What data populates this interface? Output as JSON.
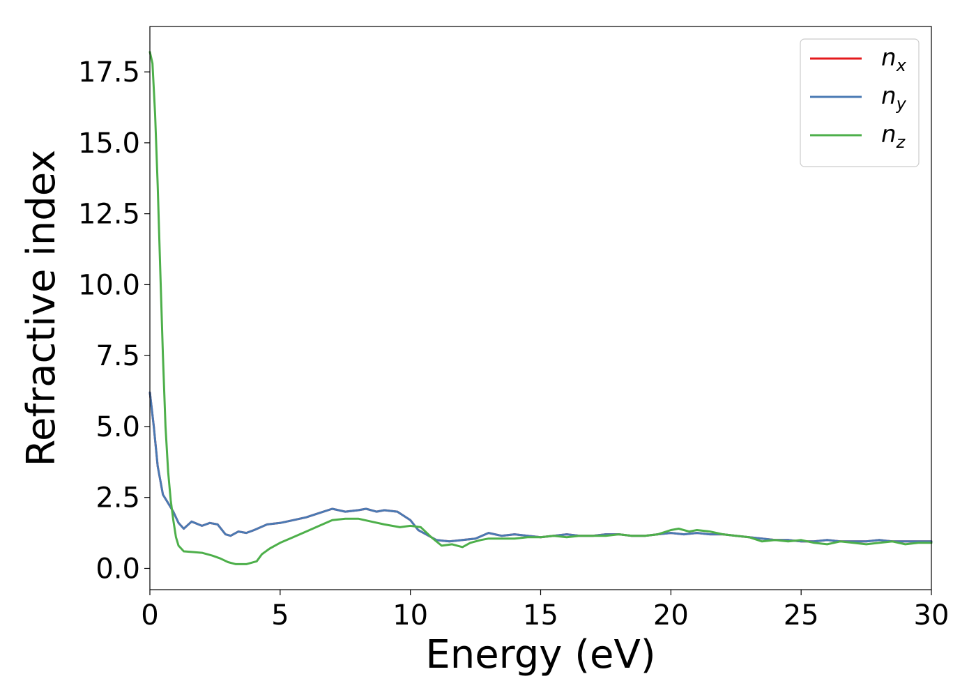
{
  "chart_data": {
    "type": "line",
    "title": "",
    "xlabel": "Energy (eV)",
    "ylabel": "Refractive index",
    "xlim": [
      0,
      30
    ],
    "ylim": [
      -0.75,
      19.1
    ],
    "xticks": [
      0,
      5,
      10,
      15,
      20,
      25,
      30
    ],
    "xtick_labels": [
      "0",
      "5",
      "10",
      "15",
      "20",
      "25",
      "30"
    ],
    "yticks": [
      0,
      2.5,
      5,
      7.5,
      10,
      12.5,
      15,
      17.5
    ],
    "ytick_labels": [
      "0.0",
      "2.5",
      "5.0",
      "7.5",
      "10.0",
      "12.5",
      "15.0",
      "17.5"
    ],
    "grid": false,
    "legend_position": "top-right",
    "series": [
      {
        "name": "n",
        "name_sub": "x",
        "color": "#e41a1c",
        "x": [
          0,
          0.15,
          0.3,
          0.5,
          0.7,
          0.9,
          1.1,
          1.3,
          1.6,
          2.0,
          2.3,
          2.6,
          2.9,
          3.1,
          3.4,
          3.7,
          4.0,
          4.5,
          5.0,
          5.5,
          6.0,
          6.5,
          7.0,
          7.5,
          8.0,
          8.3,
          8.7,
          9.0,
          9.5,
          10.0,
          10.3,
          10.6,
          11.0,
          11.5,
          12.0,
          12.5,
          13.0,
          13.5,
          14.0,
          14.5,
          15.0,
          15.5,
          16.0,
          16.5,
          17.0,
          17.5,
          18.0,
          18.5,
          19.0,
          19.5,
          20.0,
          20.5,
          21.0,
          21.5,
          22.0,
          22.5,
          23.0,
          23.5,
          24.0,
          24.5,
          25.0,
          25.5,
          26.0,
          26.5,
          27.0,
          27.5,
          28.0,
          28.5,
          29.0,
          29.5,
          30.0
        ],
        "y": [
          6.2,
          5.0,
          3.6,
          2.6,
          2.3,
          2.0,
          1.6,
          1.4,
          1.65,
          1.5,
          1.6,
          1.55,
          1.2,
          1.15,
          1.3,
          1.25,
          1.35,
          1.55,
          1.6,
          1.7,
          1.8,
          1.95,
          2.1,
          2.0,
          2.05,
          2.1,
          2.0,
          2.05,
          2.0,
          1.7,
          1.35,
          1.2,
          1.0,
          0.95,
          1.0,
          1.05,
          1.25,
          1.15,
          1.2,
          1.15,
          1.1,
          1.15,
          1.2,
          1.15,
          1.15,
          1.2,
          1.2,
          1.15,
          1.15,
          1.2,
          1.25,
          1.2,
          1.25,
          1.2,
          1.2,
          1.15,
          1.1,
          1.05,
          1.0,
          1.0,
          0.95,
          0.95,
          1.0,
          0.95,
          0.95,
          0.95,
          1.0,
          0.95,
          0.95,
          0.95,
          0.95
        ]
      },
      {
        "name": "n",
        "name_sub": "y",
        "color": "#4a7ab3",
        "x": [
          0,
          0.15,
          0.3,
          0.5,
          0.7,
          0.9,
          1.1,
          1.3,
          1.6,
          2.0,
          2.3,
          2.6,
          2.9,
          3.1,
          3.4,
          3.7,
          4.0,
          4.5,
          5.0,
          5.5,
          6.0,
          6.5,
          7.0,
          7.5,
          8.0,
          8.3,
          8.7,
          9.0,
          9.5,
          10.0,
          10.3,
          10.6,
          11.0,
          11.5,
          12.0,
          12.5,
          13.0,
          13.5,
          14.0,
          14.5,
          15.0,
          15.5,
          16.0,
          16.5,
          17.0,
          17.5,
          18.0,
          18.5,
          19.0,
          19.5,
          20.0,
          20.5,
          21.0,
          21.5,
          22.0,
          22.5,
          23.0,
          23.5,
          24.0,
          24.5,
          25.0,
          25.5,
          26.0,
          26.5,
          27.0,
          27.5,
          28.0,
          28.5,
          29.0,
          29.5,
          30.0
        ],
        "y": [
          6.2,
          5.0,
          3.6,
          2.6,
          2.3,
          2.0,
          1.6,
          1.4,
          1.65,
          1.5,
          1.6,
          1.55,
          1.2,
          1.15,
          1.3,
          1.25,
          1.35,
          1.55,
          1.6,
          1.7,
          1.8,
          1.95,
          2.1,
          2.0,
          2.05,
          2.1,
          2.0,
          2.05,
          2.0,
          1.7,
          1.35,
          1.2,
          1.0,
          0.95,
          1.0,
          1.05,
          1.25,
          1.15,
          1.2,
          1.15,
          1.1,
          1.15,
          1.2,
          1.15,
          1.15,
          1.2,
          1.2,
          1.15,
          1.15,
          1.2,
          1.25,
          1.2,
          1.25,
          1.2,
          1.2,
          1.15,
          1.1,
          1.05,
          1.0,
          1.0,
          0.95,
          0.95,
          1.0,
          0.95,
          0.95,
          0.95,
          1.0,
          0.95,
          0.95,
          0.95,
          0.95
        ]
      },
      {
        "name": "n",
        "name_sub": "z",
        "color": "#4daf4a",
        "x": [
          0,
          0.1,
          0.2,
          0.3,
          0.4,
          0.5,
          0.6,
          0.7,
          0.8,
          0.9,
          1.0,
          1.1,
          1.3,
          1.6,
          2.0,
          2.4,
          2.7,
          3.0,
          3.3,
          3.7,
          4.1,
          4.3,
          4.6,
          5.0,
          5.5,
          6.0,
          6.5,
          7.0,
          7.5,
          8.0,
          8.5,
          9.0,
          9.3,
          9.6,
          10.0,
          10.4,
          10.8,
          11.2,
          11.6,
          12.0,
          12.3,
          12.7,
          13.0,
          13.5,
          14.0,
          14.5,
          15.0,
          15.5,
          16.0,
          16.5,
          17.0,
          17.5,
          18.0,
          18.5,
          19.0,
          19.5,
          20.0,
          20.3,
          20.7,
          21.0,
          21.5,
          22.0,
          22.5,
          23.0,
          23.5,
          24.0,
          24.5,
          25.0,
          25.5,
          26.0,
          26.5,
          27.0,
          27.5,
          28.0,
          28.5,
          29.0,
          29.5,
          30.0
        ],
        "y": [
          18.2,
          17.8,
          16.0,
          13.5,
          10.5,
          7.5,
          5.0,
          3.4,
          2.4,
          1.7,
          1.1,
          0.8,
          0.6,
          0.58,
          0.55,
          0.45,
          0.35,
          0.22,
          0.15,
          0.15,
          0.25,
          0.5,
          0.7,
          0.9,
          1.1,
          1.3,
          1.5,
          1.7,
          1.75,
          1.75,
          1.65,
          1.55,
          1.5,
          1.45,
          1.5,
          1.45,
          1.1,
          0.8,
          0.85,
          0.75,
          0.9,
          1.0,
          1.05,
          1.05,
          1.05,
          1.1,
          1.1,
          1.15,
          1.1,
          1.15,
          1.15,
          1.15,
          1.2,
          1.15,
          1.15,
          1.2,
          1.35,
          1.4,
          1.3,
          1.35,
          1.3,
          1.2,
          1.15,
          1.1,
          0.95,
          1.0,
          0.95,
          1.0,
          0.9,
          0.85,
          0.95,
          0.9,
          0.85,
          0.9,
          0.95,
          0.85,
          0.9,
          0.9
        ]
      }
    ]
  }
}
